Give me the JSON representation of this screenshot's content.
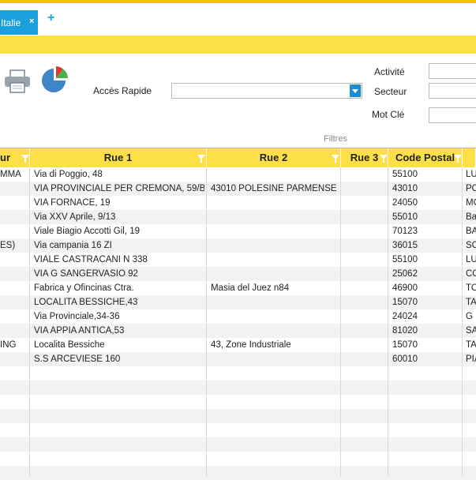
{
  "tabs": [
    {
      "label": "Italie",
      "close": "×"
    }
  ],
  "tab_add": "+",
  "toolbar": {
    "acces_rapide_label": "Accès Rapide",
    "acces_rapide_value": "",
    "activite_label": "Activité",
    "secteur_label": "Secteur",
    "motcle_label": "Mot Clé",
    "filtres_label": "Filtres"
  },
  "icons": {
    "printer": "printer-icon",
    "chart": "pie-chart-icon",
    "funnel": "filter-funnel-icon"
  },
  "colors": {
    "accent": "#1aa0dc",
    "header": "#fde047",
    "topbar": "#f5c400"
  },
  "table": {
    "columns": [
      "ur",
      "Rue 1",
      "Rue 2",
      "Rue 3",
      "Code Postal",
      ""
    ],
    "rows": [
      [
        "MMA",
        "Via di Poggio, 48",
        "",
        "",
        "55100",
        "LU"
      ],
      [
        "",
        "VIA PROVINCIALE PER CREMONA, 59/B",
        "43010 POLESINE PARMENSE",
        "",
        "43010",
        "PO"
      ],
      [
        "",
        "VIA FORNACE, 19",
        "",
        "",
        "24050",
        "MO"
      ],
      [
        "",
        "Via XXV Aprile, 9/13",
        "",
        "",
        "55010",
        "Ba"
      ],
      [
        "",
        "Viale Biagio Accotti Gil, 19",
        "",
        "",
        "70123",
        "BA"
      ],
      [
        "ES)",
        "Via campania 16 ZI",
        "",
        "",
        "36015",
        "SC"
      ],
      [
        "",
        "VIALE CASTRACANI N 338",
        "",
        "",
        "55100",
        "LU"
      ],
      [
        "",
        "VIA G SANGERVASIO 92",
        "",
        "",
        "25062",
        "CO"
      ],
      [
        "",
        "Fabrica y Ofincinas Ctra.",
        "Masia del Juez n84",
        "",
        "46900",
        "TO"
      ],
      [
        "",
        "LOCALITA BESSICHE,43",
        "",
        "",
        "15070",
        "TA"
      ],
      [
        "",
        "Via Provinciale,34-36",
        "",
        "",
        "24024",
        "G"
      ],
      [
        "",
        "VIA APPIA ANTICA,53",
        "",
        "",
        "81020",
        "SA"
      ],
      [
        "ING",
        "Localita Bessiche",
        "43, Zone Industriale",
        "",
        "15070",
        "TA"
      ],
      [
        "",
        "S.S ARCEVIESE 160",
        "",
        "",
        "60010",
        "PIA"
      ],
      [
        "",
        "",
        "",
        "",
        "",
        ""
      ],
      [
        "",
        "",
        "",
        "",
        "",
        ""
      ],
      [
        "",
        "",
        "",
        "",
        "",
        ""
      ],
      [
        "",
        "",
        "",
        "",
        "",
        ""
      ],
      [
        "",
        "",
        "",
        "",
        "",
        ""
      ],
      [
        "",
        "",
        "",
        "",
        "",
        ""
      ],
      [
        "",
        "",
        "",
        "",
        "",
        ""
      ],
      [
        "",
        "",
        "",
        "",
        "",
        ""
      ]
    ]
  }
}
